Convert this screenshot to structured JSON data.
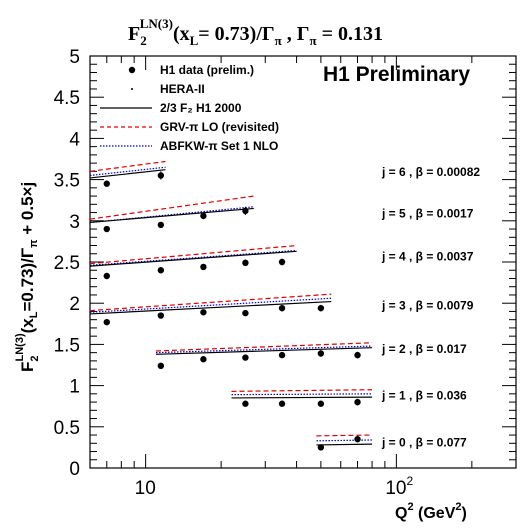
{
  "chart_data": {
    "type": "line",
    "title": {
      "F": "F",
      "sub": "2",
      "sup": "LN(3)",
      "args": "(x",
      "argsub": "L",
      "rest": "= 0.73)/Γ",
      "gsub": "π",
      "sep": " ,  Γ",
      "gsub2": "π",
      "value": " = 0.131"
    },
    "ylabel": {
      "F": "F",
      "sub": "2",
      "sup": "LN(3)",
      "part1": "(x",
      "argsub": "L",
      "part2": "=0.73)/Γ",
      "gsub": "π",
      "part3": " + 0.5×j"
    },
    "xlabel": {
      "Q": "Q",
      "sup": "2",
      "unit": " (GeV",
      "sup2": "2",
      "close": ")"
    },
    "watermark": "H1 Preliminary",
    "x_scale": "log",
    "xlim": [
      6,
      300
    ],
    "ylim": [
      0,
      5
    ],
    "y_ticks": [
      "0",
      "0.5",
      "1",
      "1.5",
      "2",
      "2.5",
      "3",
      "3.5",
      "4",
      "4.5",
      "5"
    ],
    "x_tick_labels": [
      {
        "x": 10,
        "base": "10",
        "exp": ""
      },
      {
        "x": 100,
        "base": "10",
        "exp": "2"
      }
    ],
    "legend": [
      {
        "name": "H1 data (prelim.)",
        "style": "marker"
      },
      {
        "name": "HERA-II",
        "style": "dot"
      },
      {
        "name": "2/3 F₂  H1 2000",
        "style": "solid"
      },
      {
        "name": "GRV-π LO (revisited)",
        "style": "dashed-red"
      },
      {
        "name": "ABFKW-π Set 1 NLO",
        "style": "dotted-blue"
      }
    ],
    "bins": [
      {
        "label": "j = 6 , β = 0.00082",
        "q2": [
          7,
          11.5
        ],
        "values": [
          3.45,
          3.55
        ],
        "errors": [
          0.03,
          0.05
        ],
        "h1_2000": [
          3.52,
          3.62
        ],
        "grv": [
          3.6,
          3.72
        ],
        "abfkw": [
          3.55,
          3.65
        ],
        "qrange": [
          6,
          12
        ]
      },
      {
        "label": "j = 5 , β = 0.0017",
        "q2": [
          7,
          11.5,
          17,
          25
        ],
        "values": [
          2.9,
          2.95,
          3.06,
          3.12
        ],
        "errors": [
          0.02,
          0.02,
          0.04,
          0.05
        ],
        "h1_2000": [
          2.98,
          3.15
        ],
        "grv": [
          3.02,
          3.3
        ],
        "abfkw": [
          2.98,
          3.17
        ],
        "qrange": [
          6,
          27
        ]
      },
      {
        "label": "j = 4 , β = 0.0037",
        "q2": [
          7,
          11.5,
          17,
          25,
          35
        ],
        "values": [
          2.33,
          2.4,
          2.44,
          2.49,
          2.5
        ],
        "errors": [
          0.02,
          0.02,
          0.03,
          0.04,
          0.04
        ],
        "h1_2000": [
          2.45,
          2.63
        ],
        "grv": [
          2.48,
          2.7
        ],
        "abfkw": [
          2.46,
          2.64
        ],
        "qrange": [
          6,
          40
        ]
      },
      {
        "label": "j = 3 , β = 0.0079",
        "q2": [
          7,
          11.5,
          17,
          25,
          35,
          50
        ],
        "values": [
          1.77,
          1.85,
          1.89,
          1.88,
          1.94,
          1.94
        ],
        "errors": [
          0.02,
          0.02,
          0.02,
          0.03,
          0.04,
          0.04
        ],
        "h1_2000": [
          1.87,
          2.02
        ],
        "grv": [
          1.91,
          2.11
        ],
        "abfkw": [
          1.89,
          2.06
        ],
        "qrange": [
          6,
          55
        ]
      },
      {
        "label": "j = 2 , β = 0.017",
        "q2": [
          11.5,
          17,
          25,
          35,
          50,
          70
        ],
        "values": [
          1.24,
          1.32,
          1.34,
          1.37,
          1.39,
          1.37
        ],
        "errors": [
          0.02,
          0.02,
          0.02,
          0.03,
          0.04,
          0.04
        ],
        "h1_2000": [
          1.38,
          1.46
        ],
        "grv": [
          1.42,
          1.52
        ],
        "abfkw": [
          1.4,
          1.48
        ],
        "qrange": [
          11,
          80
        ]
      },
      {
        "label": "j = 1 , β = 0.036",
        "q2": [
          25,
          35,
          50,
          70
        ],
        "values": [
          0.78,
          0.78,
          0.78,
          0.8
        ],
        "errors": [
          0.02,
          0.02,
          0.03,
          0.04
        ],
        "h1_2000": [
          0.85,
          0.86
        ],
        "grv": [
          0.93,
          0.95
        ],
        "abfkw": [
          0.89,
          0.9
        ],
        "qrange": [
          22,
          80
        ]
      },
      {
        "label": "j = 0 , β = 0.077",
        "q2": [
          50,
          70
        ],
        "values": [
          0.25,
          0.35
        ],
        "errors": [
          0.02,
          0.04
        ],
        "h1_2000": [
          0.28,
          0.29
        ],
        "grv": [
          0.39,
          0.4
        ],
        "abfkw": [
          0.33,
          0.34
        ],
        "qrange": [
          48,
          80
        ]
      }
    ]
  }
}
